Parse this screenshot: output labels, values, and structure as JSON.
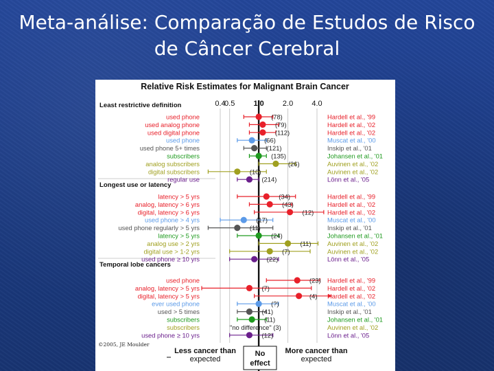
{
  "slide": {
    "title_line1": "Meta-análise: Comparação de Estudos de Risco",
    "title_line2": "de Câncer Cerebral"
  },
  "chart_data": {
    "type": "forest",
    "title": "Relative Risk Estimates for Malignant Brain Cancer",
    "x_ticks": [
      "0.4",
      "0.5",
      "1.0",
      "2.0",
      "4.0"
    ],
    "x_scale": "log",
    "xlim": [
      0.4,
      4.0
    ],
    "copyright": "©2005, JE Moulder",
    "footer": {
      "left_line1": "Less cancer than",
      "left_line2": "expected",
      "center_line1": "No",
      "center_line2": "effect",
      "right_line1": "More cancer than",
      "right_line2": "expected"
    },
    "colors": {
      "Hardell": "#e8202a",
      "Muscat": "#5b9ae8",
      "Inskip": "#555555",
      "Johansen": "#1e9a1e",
      "Auvinen": "#a0a020",
      "Lonn": "#6a1e8c"
    },
    "groups": [
      {
        "heading": "Least restrictive definition",
        "rows": [
          {
            "label": "used phone",
            "study": "Hardell et al., '99",
            "source": "Hardell",
            "n": "(78)",
            "rr": 1.0,
            "lo": 0.7,
            "hi": 1.4
          },
          {
            "label": "used analog phone",
            "study": "Hardell et al., '02",
            "source": "Hardell",
            "n": "(79)",
            "rr": 1.1,
            "lo": 0.8,
            "hi": 1.6
          },
          {
            "label": "used digital phone",
            "study": "Hardell et al., '02",
            "source": "Hardell",
            "n": "(112)",
            "rr": 1.1,
            "lo": 0.8,
            "hi": 1.5
          },
          {
            "label": "used phone",
            "study": "Muscat et al., '00",
            "source": "Muscat",
            "n": "(66)",
            "rr": 0.85,
            "lo": 0.6,
            "hi": 1.2
          },
          {
            "label": "used phone 5+ times",
            "study": "Inskip et al., '01",
            "source": "Inskip",
            "n": "(121)",
            "rr": 0.9,
            "lo": 0.7,
            "hi": 1.2
          },
          {
            "label": "subscribers",
            "study": "Johansen et al., '01",
            "source": "Johansen",
            "n": "(135)",
            "rr": 1.0,
            "lo": 0.8,
            "hi": 1.2
          },
          {
            "label": "analog subscribers",
            "study": "Auvinen et al., '02",
            "source": "Auvinen",
            "n": "(26)",
            "rr": 1.5,
            "lo": 1.0,
            "hi": 2.4
          },
          {
            "label": "digital subscribers",
            "study": "Auvinen et al., '02",
            "source": "Auvinen",
            "n": "(10)",
            "rr": 0.6,
            "lo": 0.3,
            "hi": 1.2
          },
          {
            "label": "regular use",
            "study": "Lönn et al., '05",
            "source": "Lonn",
            "n": "(214)",
            "rr": 0.8,
            "lo": 0.6,
            "hi": 1.0
          }
        ]
      },
      {
        "heading": "Longest use or latency",
        "rows": [
          {
            "label": "latency > 5 yrs",
            "study": "Hardell et al., '99",
            "source": "Hardell",
            "n": "(34)",
            "rr": 1.2,
            "lo": 0.6,
            "hi": 2.4
          },
          {
            "label": "analog, latency > 6 yrs",
            "study": "Hardell et al., '02",
            "source": "Hardell",
            "n": "(43)",
            "rr": 1.3,
            "lo": 0.8,
            "hi": 2.2
          },
          {
            "label": "digital, latency > 6 yrs",
            "study": "Hardell et al., '02",
            "source": "Hardell",
            "n": "(12)",
            "rr": 2.1,
            "lo": 0.9,
            "hi": 4.7
          },
          {
            "label": "used phone > 4 yrs",
            "study": "Muscat et al., '00",
            "source": "Muscat",
            "n": "(17)",
            "rr": 0.7,
            "lo": 0.4,
            "hi": 1.4
          },
          {
            "label": "used phone regularly > 5 yrs",
            "study": "Inskip et al., '01",
            "source": "Inskip",
            "n": "(11)",
            "rr": 0.6,
            "lo": 0.3,
            "hi": 1.4
          },
          {
            "label": "latency > 5 yrs",
            "study": "Johansen et al., '01",
            "source": "Johansen",
            "n": "(24)",
            "rr": 1.0,
            "lo": 0.6,
            "hi": 1.6
          },
          {
            "label": "analog use > 2 yrs",
            "study": "Auvinen et al., '02",
            "source": "Auvinen",
            "n": "(11)",
            "rr": 2.0,
            "lo": 1.0,
            "hi": 4.1
          },
          {
            "label": "digital use > 1-2 yrs",
            "study": "Auvinen et al., '02",
            "source": "Auvinen",
            "n": "(7)",
            "rr": 1.3,
            "lo": 0.5,
            "hi": 3.4
          },
          {
            "label": "used phone ≥ 10 yrs",
            "study": "Lönn et al., '05",
            "source": "Lonn",
            "n": "(22)",
            "rr": 0.9,
            "lo": 0.5,
            "hi": 1.6
          }
        ]
      },
      {
        "heading": "Temporal lobe cancers",
        "rows": [
          {
            "label": "used phone",
            "study": "Hardell et al., '99",
            "source": "Hardell",
            "n": "(23)",
            "rr": 2.5,
            "lo": 1.2,
            "hi": 4.3
          },
          {
            "label": "analog, latency > 5 yrs",
            "study": "Hardell et al., '02",
            "source": "Hardell",
            "n": "(7)",
            "rr": 0.8,
            "lo": 0.2,
            "hi": 3.5
          },
          {
            "label": "digital, latency > 5 yrs",
            "study": "Hardell et al., '02",
            "source": "Hardell",
            "n": "(4)",
            "rr": 2.6,
            "lo": 0.9,
            "hi": 8.5
          },
          {
            "label": "ever used phone",
            "study": "Muscat et al., '00",
            "source": "Muscat",
            "n": "(?)",
            "rr": 1.0,
            "lo": 0.6,
            "hi": 1.6
          },
          {
            "label": "used > 5 times",
            "study": "Inskip et al., '01",
            "source": "Inskip",
            "n": "(41)",
            "rr": 0.8,
            "lo": 0.6,
            "hi": 1.2
          },
          {
            "label": "subscribers",
            "study": "Johansen et al., '01",
            "source": "Johansen",
            "n": "(11)",
            "rr": 0.85,
            "lo": 0.6,
            "hi": 1.2
          },
          {
            "label": "subscribers",
            "study": "Auvinen et al., '02",
            "source": "Auvinen",
            "n": "\"no difference\"   (3)",
            "rr": null,
            "lo": null,
            "hi": null
          },
          {
            "label": "used phone ≥ 10 yrs",
            "study": "Lönn et al., '05",
            "source": "Lonn",
            "n": "(12)",
            "rr": 0.8,
            "lo": 0.5,
            "hi": 1.4
          }
        ]
      }
    ]
  }
}
